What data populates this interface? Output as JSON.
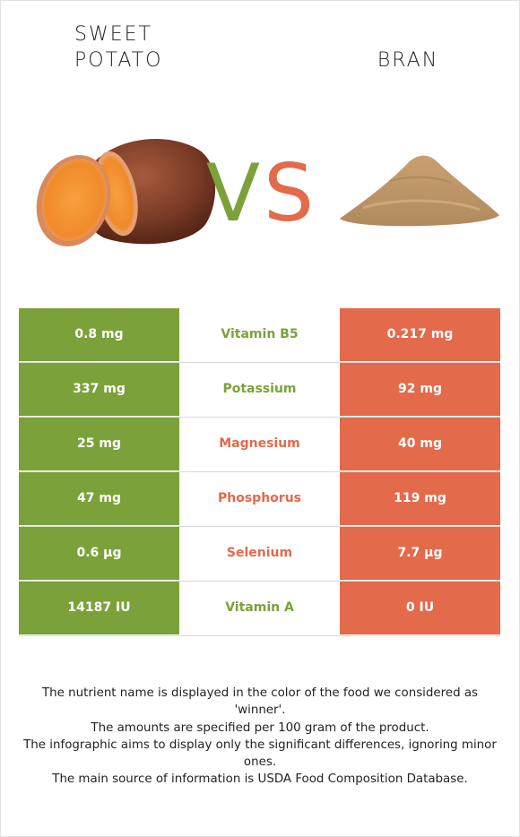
{
  "colors": {
    "winner_left": "#7ba23a",
    "winner_right": "#e36a4b"
  },
  "left_food": {
    "title": "SWEET POTATO",
    "image": "sweet-potato-illustration"
  },
  "right_food": {
    "title": "BRAN",
    "image": "bran-pile-illustration"
  },
  "vs": {
    "v": "V",
    "s": "S"
  },
  "rows": [
    {
      "left": "0.8 mg",
      "nutrient": "Vitamin B5",
      "right": "0.217 mg",
      "winner": "left"
    },
    {
      "left": "337 mg",
      "nutrient": "Potassium",
      "right": "92 mg",
      "winner": "left"
    },
    {
      "left": "25 mg",
      "nutrient": "Magnesium",
      "right": "40 mg",
      "winner": "right"
    },
    {
      "left": "47 mg",
      "nutrient": "Phosphorus",
      "right": "119 mg",
      "winner": "right"
    },
    {
      "left": "0.6 µg",
      "nutrient": "Selenium",
      "right": "7.7 µg",
      "winner": "right"
    },
    {
      "left": "14187 IU",
      "nutrient": "Vitamin A",
      "right": "0 IU",
      "winner": "left"
    }
  ],
  "footnotes": [
    "The nutrient name is displayed in the color of the food we considered as 'winner'.",
    "The amounts are specified per 100 gram of the product.",
    "The infographic aims to display only the significant differences, ignoring minor ones.",
    "The main source of information is USDA Food Composition Database."
  ]
}
